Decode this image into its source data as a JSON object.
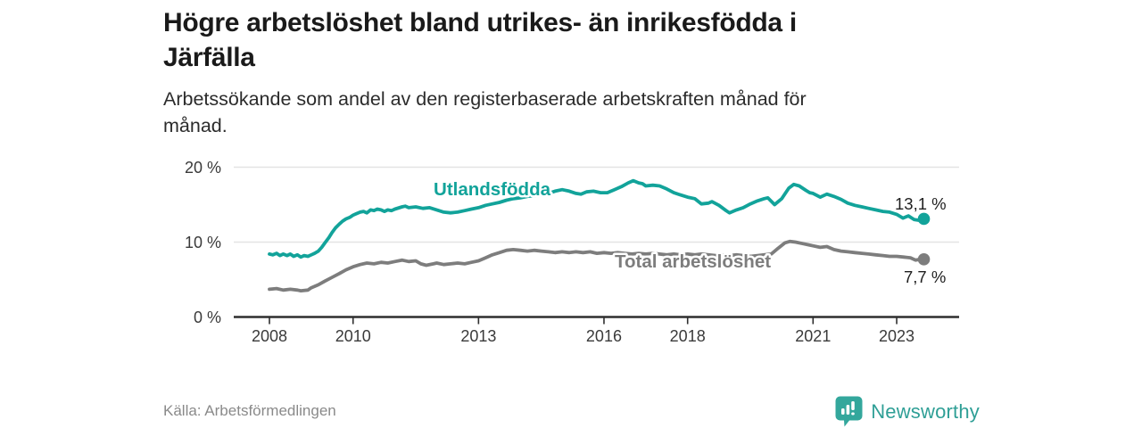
{
  "header": {
    "title_line1": "Högre arbetslöshet bland utrikes- än inrikesfödda i",
    "title_line2": "Järfälla",
    "subtitle_line1": "Arbetssökande som andel av den registerbaserade arbetskraften månad för",
    "subtitle_line2": "månad."
  },
  "footer": {
    "source": "Källa: Arbetsförmedlingen",
    "brand_name": "Newsworthy",
    "brand_icon": "newsworthy-speech-bubble-bars-icon"
  },
  "colors": {
    "accent_teal": "#12a39a",
    "line_gray": "#7d7d7d",
    "grid": "#e4e4e4",
    "axis": "#2e2e2e",
    "tick_text": "#3a3a3a",
    "annotation_text": "#1f1f1f",
    "brand_teal": "#33a79c"
  },
  "chart_data": {
    "type": "line",
    "title": "",
    "xlabel": "",
    "ylabel": "",
    "x_axis": {
      "range": [
        2007.15,
        2024.5
      ],
      "ticks": [
        2008,
        2010,
        2013,
        2016,
        2018,
        2021,
        2023
      ],
      "tick_labels": [
        "2008",
        "2010",
        "2013",
        "2016",
        "2018",
        "2021",
        "2023"
      ]
    },
    "y_axis": {
      "range": [
        0,
        21.5
      ],
      "ticks": [
        0,
        10,
        20
      ],
      "tick_labels": [
        "0 %",
        "10 %",
        "20 %"
      ],
      "grid": true
    },
    "legend_position": "inline-labels",
    "series": [
      {
        "name": "Utlandsfödda",
        "color": "#12a39a",
        "end_value": 13.1,
        "end_label": "13,1 %",
        "points": [
          [
            2008.0,
            8.4
          ],
          [
            2008.08,
            8.3
          ],
          [
            2008.17,
            8.5
          ],
          [
            2008.25,
            8.2
          ],
          [
            2008.33,
            8.4
          ],
          [
            2008.42,
            8.2
          ],
          [
            2008.5,
            8.4
          ],
          [
            2008.58,
            8.1
          ],
          [
            2008.67,
            8.3
          ],
          [
            2008.75,
            8.0
          ],
          [
            2008.83,
            8.2
          ],
          [
            2008.92,
            8.1
          ],
          [
            2009.0,
            8.3
          ],
          [
            2009.08,
            8.5
          ],
          [
            2009.17,
            8.8
          ],
          [
            2009.25,
            9.3
          ],
          [
            2009.33,
            9.9
          ],
          [
            2009.42,
            10.6
          ],
          [
            2009.5,
            11.3
          ],
          [
            2009.58,
            11.9
          ],
          [
            2009.67,
            12.4
          ],
          [
            2009.75,
            12.8
          ],
          [
            2009.83,
            13.1
          ],
          [
            2009.92,
            13.3
          ],
          [
            2010.0,
            13.6
          ],
          [
            2010.08,
            13.8
          ],
          [
            2010.17,
            14.0
          ],
          [
            2010.25,
            14.1
          ],
          [
            2010.33,
            13.9
          ],
          [
            2010.42,
            14.3
          ],
          [
            2010.5,
            14.2
          ],
          [
            2010.58,
            14.4
          ],
          [
            2010.67,
            14.3
          ],
          [
            2010.75,
            14.1
          ],
          [
            2010.83,
            14.3
          ],
          [
            2010.92,
            14.2
          ],
          [
            2011.0,
            14.4
          ],
          [
            2011.17,
            14.7
          ],
          [
            2011.25,
            14.8
          ],
          [
            2011.33,
            14.6
          ],
          [
            2011.5,
            14.7
          ],
          [
            2011.67,
            14.5
          ],
          [
            2011.83,
            14.6
          ],
          [
            2012.0,
            14.3
          ],
          [
            2012.17,
            14.0
          ],
          [
            2012.33,
            13.9
          ],
          [
            2012.5,
            14.0
          ],
          [
            2012.67,
            14.2
          ],
          [
            2012.83,
            14.4
          ],
          [
            2013.0,
            14.6
          ],
          [
            2013.17,
            14.9
          ],
          [
            2013.33,
            15.1
          ],
          [
            2013.5,
            15.3
          ],
          [
            2013.67,
            15.6
          ],
          [
            2013.83,
            15.8
          ],
          [
            2014.0,
            15.9
          ],
          [
            2014.17,
            16.1
          ],
          [
            2014.33,
            16.2
          ],
          [
            2014.5,
            16.3
          ],
          [
            2014.67,
            16.5
          ],
          [
            2014.83,
            16.8
          ],
          [
            2015.0,
            17.0
          ],
          [
            2015.17,
            16.8
          ],
          [
            2015.33,
            16.5
          ],
          [
            2015.45,
            16.4
          ],
          [
            2015.58,
            16.7
          ],
          [
            2015.75,
            16.8
          ],
          [
            2015.92,
            16.6
          ],
          [
            2016.08,
            16.6
          ],
          [
            2016.25,
            17.0
          ],
          [
            2016.42,
            17.4
          ],
          [
            2016.58,
            17.9
          ],
          [
            2016.7,
            18.2
          ],
          [
            2016.83,
            17.9
          ],
          [
            2016.92,
            17.8
          ],
          [
            2017.0,
            17.5
          ],
          [
            2017.17,
            17.6
          ],
          [
            2017.33,
            17.5
          ],
          [
            2017.5,
            17.1
          ],
          [
            2017.67,
            16.6
          ],
          [
            2017.83,
            16.3
          ],
          [
            2018.0,
            16.0
          ],
          [
            2018.17,
            15.8
          ],
          [
            2018.33,
            15.1
          ],
          [
            2018.5,
            15.2
          ],
          [
            2018.58,
            15.4
          ],
          [
            2018.75,
            14.9
          ],
          [
            2018.92,
            14.2
          ],
          [
            2019.0,
            13.9
          ],
          [
            2019.17,
            14.3
          ],
          [
            2019.33,
            14.6
          ],
          [
            2019.5,
            15.1
          ],
          [
            2019.67,
            15.5
          ],
          [
            2019.83,
            15.8
          ],
          [
            2019.92,
            15.9
          ],
          [
            2020.08,
            15.0
          ],
          [
            2020.25,
            15.8
          ],
          [
            2020.42,
            17.2
          ],
          [
            2020.54,
            17.7
          ],
          [
            2020.67,
            17.5
          ],
          [
            2020.83,
            16.9
          ],
          [
            2020.92,
            16.6
          ],
          [
            2021.0,
            16.5
          ],
          [
            2021.17,
            16.0
          ],
          [
            2021.33,
            16.4
          ],
          [
            2021.5,
            16.1
          ],
          [
            2021.67,
            15.7
          ],
          [
            2021.83,
            15.2
          ],
          [
            2022.0,
            14.9
          ],
          [
            2022.17,
            14.7
          ],
          [
            2022.33,
            14.5
          ],
          [
            2022.5,
            14.3
          ],
          [
            2022.67,
            14.1
          ],
          [
            2022.83,
            14.0
          ],
          [
            2023.0,
            13.7
          ],
          [
            2023.15,
            13.2
          ],
          [
            2023.28,
            13.5
          ],
          [
            2023.42,
            13.0
          ],
          [
            2023.54,
            12.9
          ],
          [
            2023.65,
            13.1
          ]
        ]
      },
      {
        "name": "Total arbetslöshet",
        "color": "#7d7d7d",
        "end_value": 7.7,
        "end_label": "7,7 %",
        "points": [
          [
            2008.0,
            3.7
          ],
          [
            2008.17,
            3.8
          ],
          [
            2008.33,
            3.6
          ],
          [
            2008.5,
            3.7
          ],
          [
            2008.67,
            3.6
          ],
          [
            2008.75,
            3.5
          ],
          [
            2008.92,
            3.6
          ],
          [
            2009.0,
            3.9
          ],
          [
            2009.17,
            4.3
          ],
          [
            2009.33,
            4.8
          ],
          [
            2009.5,
            5.3
          ],
          [
            2009.67,
            5.8
          ],
          [
            2009.83,
            6.3
          ],
          [
            2010.0,
            6.7
          ],
          [
            2010.17,
            7.0
          ],
          [
            2010.33,
            7.2
          ],
          [
            2010.5,
            7.1
          ],
          [
            2010.67,
            7.3
          ],
          [
            2010.83,
            7.2
          ],
          [
            2011.0,
            7.4
          ],
          [
            2011.17,
            7.6
          ],
          [
            2011.33,
            7.4
          ],
          [
            2011.5,
            7.5
          ],
          [
            2011.62,
            7.1
          ],
          [
            2011.75,
            6.9
          ],
          [
            2011.92,
            7.1
          ],
          [
            2012.0,
            7.2
          ],
          [
            2012.17,
            7.0
          ],
          [
            2012.33,
            7.1
          ],
          [
            2012.5,
            7.2
          ],
          [
            2012.67,
            7.1
          ],
          [
            2012.83,
            7.3
          ],
          [
            2013.0,
            7.5
          ],
          [
            2013.17,
            7.9
          ],
          [
            2013.33,
            8.3
          ],
          [
            2013.5,
            8.6
          ],
          [
            2013.67,
            8.9
          ],
          [
            2013.83,
            9.0
          ],
          [
            2014.0,
            8.9
          ],
          [
            2014.17,
            8.8
          ],
          [
            2014.33,
            8.9
          ],
          [
            2014.5,
            8.8
          ],
          [
            2014.67,
            8.7
          ],
          [
            2014.83,
            8.6
          ],
          [
            2015.0,
            8.7
          ],
          [
            2015.17,
            8.6
          ],
          [
            2015.33,
            8.7
          ],
          [
            2015.5,
            8.6
          ],
          [
            2015.67,
            8.7
          ],
          [
            2015.83,
            8.5
          ],
          [
            2016.0,
            8.6
          ],
          [
            2016.17,
            8.5
          ],
          [
            2016.33,
            8.6
          ],
          [
            2016.5,
            8.5
          ],
          [
            2016.67,
            8.4
          ],
          [
            2016.83,
            8.5
          ],
          [
            2017.0,
            8.4
          ],
          [
            2017.17,
            8.5
          ],
          [
            2017.33,
            8.4
          ],
          [
            2017.5,
            8.3
          ],
          [
            2017.67,
            8.4
          ],
          [
            2017.83,
            8.3
          ],
          [
            2018.0,
            8.4
          ],
          [
            2018.17,
            8.3
          ],
          [
            2018.33,
            8.4
          ],
          [
            2018.5,
            8.3
          ],
          [
            2018.67,
            8.2
          ],
          [
            2018.83,
            8.3
          ],
          [
            2019.0,
            8.2
          ],
          [
            2019.17,
            8.3
          ],
          [
            2019.33,
            8.2
          ],
          [
            2019.5,
            8.1
          ],
          [
            2019.67,
            8.2
          ],
          [
            2019.83,
            8.3
          ],
          [
            2020.0,
            8.4
          ],
          [
            2020.17,
            9.2
          ],
          [
            2020.33,
            9.9
          ],
          [
            2020.45,
            10.1
          ],
          [
            2020.58,
            10.0
          ],
          [
            2020.75,
            9.8
          ],
          [
            2020.92,
            9.6
          ],
          [
            2021.0,
            9.5
          ],
          [
            2021.17,
            9.3
          ],
          [
            2021.33,
            9.4
          ],
          [
            2021.5,
            9.0
          ],
          [
            2021.67,
            8.8
          ],
          [
            2021.83,
            8.7
          ],
          [
            2022.0,
            8.6
          ],
          [
            2022.17,
            8.5
          ],
          [
            2022.33,
            8.4
          ],
          [
            2022.5,
            8.3
          ],
          [
            2022.67,
            8.2
          ],
          [
            2022.83,
            8.1
          ],
          [
            2023.0,
            8.1
          ],
          [
            2023.17,
            8.0
          ],
          [
            2023.33,
            7.9
          ],
          [
            2023.45,
            7.6
          ],
          [
            2023.56,
            7.7
          ],
          [
            2023.65,
            7.7
          ]
        ]
      }
    ]
  }
}
